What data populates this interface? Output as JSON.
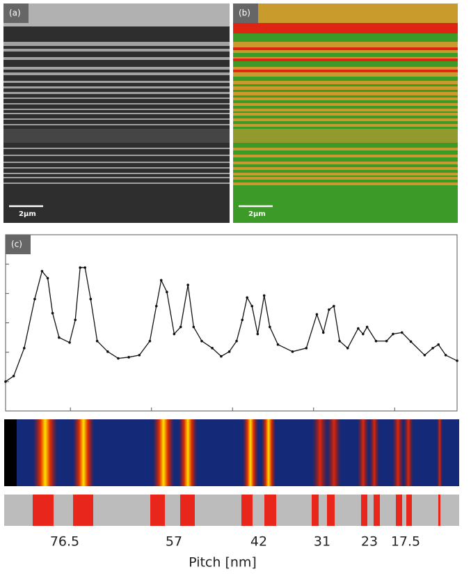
{
  "panels": {
    "a": {
      "label": "(a)",
      "scale_bar": "2µm"
    },
    "b": {
      "label": "(b)",
      "scale_bar": "2µm"
    }
  },
  "chart_data": {
    "type": "line",
    "panel_label": "(c)",
    "xlabel": "Pitch [nm]",
    "pitch_labels": [
      "76.5",
      "57",
      "42",
      "31",
      "23",
      "17.5"
    ],
    "color": "#111",
    "xlim": [
      0.2,
      5.77
    ],
    "ylim": [
      0,
      6
    ],
    "xticks": [
      1,
      2,
      3,
      4,
      5
    ],
    "yticks": [
      1,
      2,
      3,
      4,
      5
    ],
    "x": [
      0.2,
      0.3,
      0.43,
      0.56,
      0.65,
      0.72,
      0.78,
      0.86,
      0.99,
      1.06,
      1.12,
      1.18,
      1.25,
      1.33,
      1.46,
      1.59,
      1.72,
      1.85,
      1.98,
      2.06,
      2.12,
      2.19,
      2.28,
      2.36,
      2.45,
      2.52,
      2.62,
      2.75,
      2.86,
      2.96,
      3.05,
      3.12,
      3.18,
      3.24,
      3.31,
      3.39,
      3.46,
      3.56,
      3.74,
      3.91,
      4.04,
      4.12,
      4.19,
      4.25,
      4.32,
      4.42,
      4.55,
      4.61,
      4.66,
      4.77,
      4.9,
      4.98,
      5.09,
      5.2,
      5.37,
      5.47,
      5.54,
      5.63,
      5.77
    ],
    "values": [
      1.0,
      1.19,
      2.14,
      3.81,
      4.76,
      4.52,
      3.33,
      2.5,
      2.33,
      3.1,
      4.88,
      4.88,
      3.81,
      2.38,
      2.02,
      1.79,
      1.83,
      1.9,
      2.38,
      3.57,
      4.45,
      4.05,
      2.62,
      2.86,
      4.29,
      2.86,
      2.38,
      2.14,
      1.86,
      2.02,
      2.38,
      3.1,
      3.86,
      3.57,
      2.62,
      3.93,
      2.86,
      2.26,
      2.02,
      2.14,
      3.29,
      2.67,
      3.45,
      3.57,
      2.38,
      2.14,
      2.81,
      2.62,
      2.86,
      2.38,
      2.38,
      2.62,
      2.67,
      2.36,
      1.9,
      2.14,
      2.26,
      1.9,
      1.71
    ]
  }
}
